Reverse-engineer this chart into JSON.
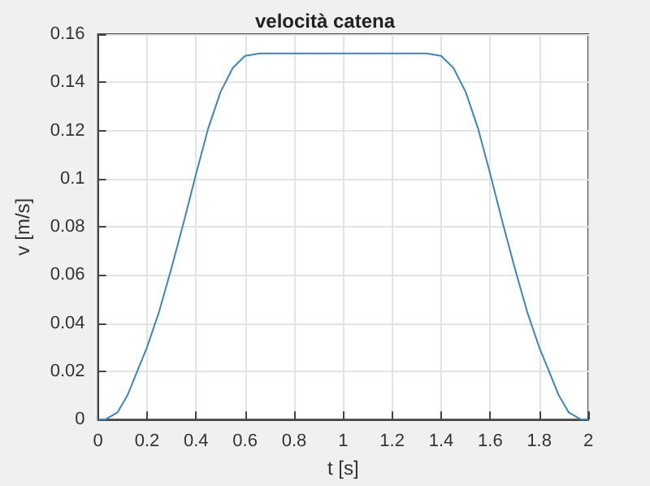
{
  "chart_data": {
    "type": "line",
    "title": "velocità catena",
    "xlabel": "t [s]",
    "ylabel": "v [m/s]",
    "x": [
      0,
      0.03,
      0.08,
      0.12,
      0.16,
      0.2,
      0.25,
      0.3,
      0.35,
      0.4,
      0.45,
      0.5,
      0.55,
      0.6,
      0.66,
      1.0,
      1.34,
      1.4,
      1.45,
      1.5,
      1.55,
      1.6,
      1.65,
      1.7,
      1.75,
      1.8,
      1.84,
      1.88,
      1.92,
      1.97,
      2
    ],
    "series": [
      {
        "color": "#3d85bd",
        "values": [
          0,
          0,
          0.003,
          0.01,
          0.02,
          0.03,
          0.045,
          0.063,
          0.082,
          0.102,
          0.121,
          0.136,
          0.146,
          0.151,
          0.152,
          0.152,
          0.152,
          0.151,
          0.146,
          0.136,
          0.121,
          0.102,
          0.082,
          0.063,
          0.045,
          0.03,
          0.02,
          0.01,
          0.003,
          0,
          0
        ]
      }
    ],
    "xlim": [
      0,
      2
    ],
    "xticks": [
      0,
      0.2,
      0.4,
      0.6,
      0.8,
      1,
      1.2,
      1.4,
      1.6,
      1.8,
      2
    ],
    "ylim": [
      0,
      0.16
    ],
    "yticks": [
      0,
      0.02,
      0.04,
      0.06,
      0.08,
      0.1,
      0.12,
      0.14,
      0.16
    ],
    "grid": true,
    "marker": "none",
    "line_style": "solid"
  }
}
